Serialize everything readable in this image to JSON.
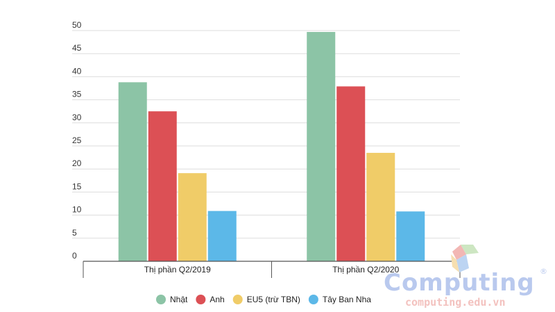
{
  "chart_data": {
    "type": "bar",
    "categories": [
      "Thị phần Q2/2019",
      "Thị phần Q2/2020"
    ],
    "series": [
      {
        "name": "Nhật",
        "color": "#8cc4a6",
        "values": [
          38.8,
          49.7
        ]
      },
      {
        "name": "Anh",
        "color": "#dc5055",
        "values": [
          32.5,
          37.9
        ]
      },
      {
        "name": "EU5 (trừ TBN)",
        "color": "#f0cc68",
        "values": [
          19.1,
          23.5
        ]
      },
      {
        "name": "Tây Ban Nha",
        "color": "#5cb8e8",
        "values": [
          10.9,
          10.8
        ]
      }
    ],
    "yticks": [
      "0",
      "5",
      "10",
      "15",
      "20",
      "25",
      "30",
      "35",
      "40",
      "45",
      "50"
    ],
    "ylim": [
      0,
      50
    ],
    "title": "",
    "xlabel": "",
    "ylabel": "",
    "grid": true,
    "legend_position": "bottom"
  },
  "watermark": {
    "brand": "Computing",
    "registered": "®",
    "url": "computing.edu.vn"
  }
}
